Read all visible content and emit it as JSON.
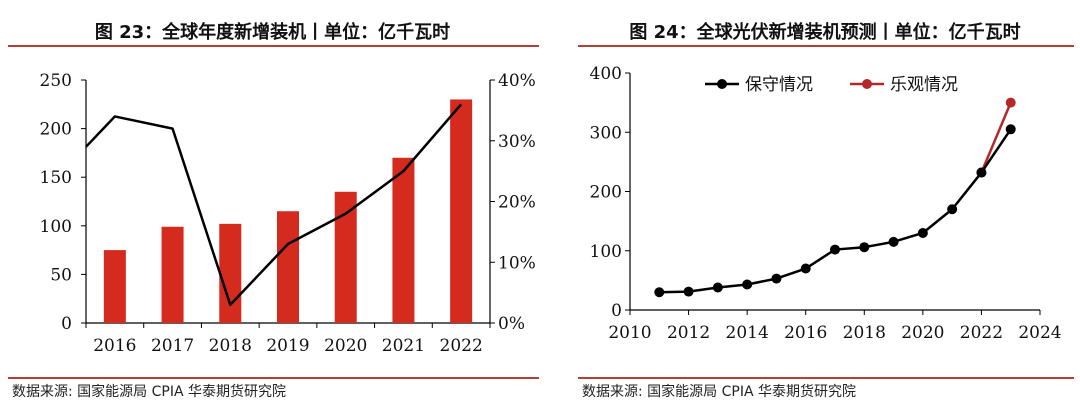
{
  "chart_data": [
    {
      "type": "bar",
      "title": "图 23：全球年度新增装机丨单位：亿千瓦时",
      "categories": [
        "2016",
        "2017",
        "2018",
        "2019",
        "2020",
        "2021",
        "2022"
      ],
      "series": [
        {
          "values": [
            75,
            99,
            102,
            115,
            135,
            170,
            230
          ],
          "axis": "left",
          "color": "#d42b1e",
          "kind": "bar"
        },
        {
          "values": [
            34,
            32,
            3,
            13,
            18,
            25,
            36
          ],
          "axis": "right",
          "color": "#000000",
          "kind": "line",
          "unit": "%",
          "start_value": 29
        }
      ],
      "y_left": {
        "min": 0,
        "max": 250,
        "ticks": [
          "0",
          "50",
          "100",
          "150",
          "200",
          "250"
        ]
      },
      "y_right": {
        "min": 0,
        "max": 40,
        "ticks": [
          "0%",
          "10%",
          "20%",
          "30%",
          "40%"
        ]
      },
      "grid": false,
      "source": "数据来源:  国家能源局  CPIA  华泰期货研究院"
    },
    {
      "type": "line",
      "title": "图 24：全球光伏新增装机预测丨单位：亿千瓦时",
      "x_range": [
        2010,
        2024
      ],
      "x_ticks": [
        "2010",
        "2012",
        "2014",
        "2016",
        "2018",
        "2020",
        "2022",
        "2024"
      ],
      "y_range": [
        0,
        400
      ],
      "y_ticks": [
        "0",
        "100",
        "200",
        "300",
        "400"
      ],
      "legend_position": "top",
      "grid": false,
      "series": [
        {
          "name": "保守情况",
          "color": "#000000",
          "x": [
            2011,
            2012,
            2013,
            2014,
            2015,
            2016,
            2017,
            2018,
            2019,
            2020,
            2021,
            2022,
            2023
          ],
          "y": [
            30,
            31,
            38,
            43,
            53,
            70,
            102,
            106,
            115,
            130,
            170,
            232,
            305
          ]
        },
        {
          "name": "乐观情况",
          "color": "#b5282a",
          "x": [
            2022,
            2023
          ],
          "y": [
            232,
            350
          ]
        }
      ],
      "source": "数据来源:  国家能源局  CPIA  华泰期货研究院"
    }
  ]
}
